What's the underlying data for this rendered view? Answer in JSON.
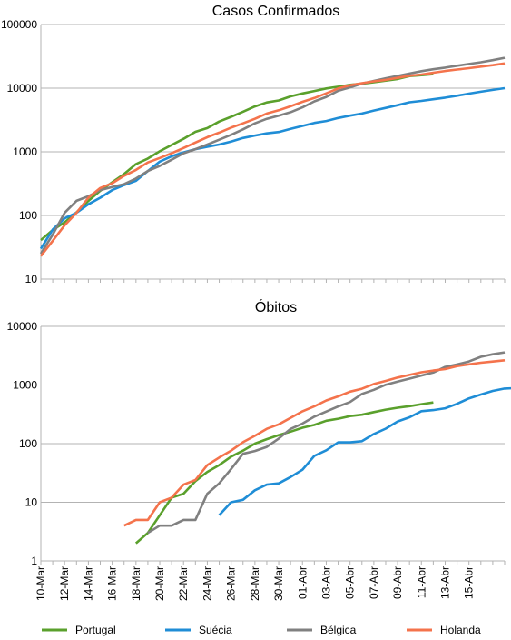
{
  "chart_data": [
    {
      "type": "line",
      "title": "Casos Confirmados",
      "yscale": "log",
      "ylim": [
        10,
        100000
      ],
      "y_ticks": [
        "10",
        "100",
        "1000",
        "10000",
        "100000"
      ],
      "x_range": [
        "10-Mar",
        "18-Abr"
      ],
      "x_ticks": [],
      "grid": true,
      "series": [
        {
          "name": "Portugal",
          "color": "#5aa02c",
          "points": [
            [
              0,
              41
            ],
            [
              1,
              59
            ],
            [
              2,
              78
            ],
            [
              3,
              112
            ],
            [
              4,
              169
            ],
            [
              5,
              245
            ],
            [
              6,
              331
            ],
            [
              7,
              448
            ],
            [
              8,
              642
            ],
            [
              9,
              785
            ],
            [
              10,
              1020
            ],
            [
              11,
              1280
            ],
            [
              12,
              1600
            ],
            [
              13,
              2060
            ],
            [
              14,
              2362
            ],
            [
              15,
              2995
            ],
            [
              16,
              3544
            ],
            [
              17,
              4268
            ],
            [
              18,
              5170
            ],
            [
              19,
              5962
            ],
            [
              20,
              6408
            ],
            [
              21,
              7443
            ],
            [
              22,
              8251
            ],
            [
              23,
              9034
            ],
            [
              24,
              9886
            ],
            [
              25,
              10524
            ],
            [
              26,
              11278
            ],
            [
              27,
              11730
            ],
            [
              28,
              12442
            ],
            [
              29,
              13141
            ],
            [
              30,
              13956
            ],
            [
              31,
              15472
            ],
            [
              32,
              15987
            ],
            [
              33,
              16585
            ]
          ]
        },
        {
          "name": "Suécia",
          "color": "#1f8dd6",
          "points": [
            [
              0,
              30
            ],
            [
              1,
              60
            ],
            [
              2,
              90
            ],
            [
              3,
              110
            ],
            [
              4,
              150
            ],
            [
              5,
              190
            ],
            [
              6,
              250
            ],
            [
              7,
              300
            ],
            [
              8,
              350
            ],
            [
              9,
              500
            ],
            [
              10,
              700
            ],
            [
              11,
              850
            ],
            [
              12,
              980
            ],
            [
              13,
              1100
            ],
            [
              14,
              1200
            ],
            [
              15,
              1300
            ],
            [
              16,
              1450
            ],
            [
              17,
              1650
            ],
            [
              18,
              1800
            ],
            [
              19,
              1950
            ],
            [
              20,
              2050
            ],
            [
              21,
              2300
            ],
            [
              22,
              2550
            ],
            [
              23,
              2850
            ],
            [
              24,
              3050
            ],
            [
              25,
              3400
            ],
            [
              26,
              3700
            ],
            [
              27,
              4000
            ],
            [
              28,
              4450
            ],
            [
              29,
              4900
            ],
            [
              30,
              5400
            ],
            [
              31,
              6000
            ],
            [
              32,
              6300
            ],
            [
              33,
              6700
            ],
            [
              34,
              7100
            ],
            [
              35,
              7600
            ],
            [
              36,
              8200
            ],
            [
              37,
              8800
            ],
            [
              38,
              9400
            ],
            [
              39,
              10000
            ]
          ]
        },
        {
          "name": "Bélgica",
          "color": "#808080",
          "points": [
            [
              0,
              25
            ],
            [
              1,
              50
            ],
            [
              2,
              110
            ],
            [
              3,
              170
            ],
            [
              4,
              200
            ],
            [
              5,
              250
            ],
            [
              6,
              280
            ],
            [
              7,
              310
            ],
            [
              8,
              380
            ],
            [
              9,
              500
            ],
            [
              10,
              600
            ],
            [
              11,
              750
            ],
            [
              12,
              950
            ],
            [
              13,
              1100
            ],
            [
              14,
              1300
            ],
            [
              15,
              1550
            ],
            [
              16,
              1850
            ],
            [
              17,
              2250
            ],
            [
              18,
              2800
            ],
            [
              19,
              3300
            ],
            [
              20,
              3700
            ],
            [
              21,
              4200
            ],
            [
              22,
              5000
            ],
            [
              23,
              6200
            ],
            [
              24,
              7300
            ],
            [
              25,
              9100
            ],
            [
              26,
              10300
            ],
            [
              27,
              11800
            ],
            [
              28,
              13000
            ],
            [
              29,
              14300
            ],
            [
              30,
              15600
            ],
            [
              31,
              17000
            ],
            [
              32,
              18500
            ],
            [
              33,
              19800
            ],
            [
              34,
              21000
            ],
            [
              35,
              22500
            ],
            [
              36,
              24000
            ],
            [
              37,
              25500
            ],
            [
              38,
              27500
            ],
            [
              39,
              30000
            ]
          ]
        },
        {
          "name": "Holanda",
          "color": "#f4734c",
          "points": [
            [
              0,
              23
            ],
            [
              1,
              40
            ],
            [
              2,
              70
            ],
            [
              3,
              110
            ],
            [
              4,
              190
            ],
            [
              5,
              270
            ],
            [
              6,
              320
            ],
            [
              7,
              420
            ],
            [
              8,
              520
            ],
            [
              9,
              680
            ],
            [
              10,
              800
            ],
            [
              11,
              950
            ],
            [
              12,
              1150
            ],
            [
              13,
              1400
            ],
            [
              14,
              1700
            ],
            [
              15,
              2000
            ],
            [
              16,
              2400
            ],
            [
              17,
              2800
            ],
            [
              18,
              3300
            ],
            [
              19,
              4000
            ],
            [
              20,
              4500
            ],
            [
              21,
              5200
            ],
            [
              22,
              6100
            ],
            [
              23,
              7000
            ],
            [
              24,
              8300
            ],
            [
              25,
              9900
            ],
            [
              26,
              11100
            ],
            [
              27,
              12000
            ],
            [
              28,
              12800
            ],
            [
              29,
              13500
            ],
            [
              30,
              14500
            ],
            [
              31,
              15700
            ],
            [
              32,
              16400
            ],
            [
              33,
              17500
            ],
            [
              34,
              18600
            ],
            [
              35,
              19600
            ],
            [
              36,
              20600
            ],
            [
              37,
              21800
            ],
            [
              38,
              23000
            ],
            [
              39,
              24500
            ]
          ]
        }
      ]
    },
    {
      "type": "line",
      "title": "Óbitos",
      "yscale": "log",
      "ylim": [
        1,
        10000
      ],
      "y_ticks": [
        "1",
        "10",
        "100",
        "1000",
        "10000"
      ],
      "x_range": [
        "10-Mar",
        "18-Abr"
      ],
      "x_ticks": [
        "10-Mar",
        "12-Mar",
        "14-Mar",
        "16-Mar",
        "18-Mar",
        "20-Mar",
        "22-Mar",
        "24-Mar",
        "26-Mar",
        "28-Mar",
        "30-Mar",
        "01-Abr",
        "03-Abr",
        "05-Abr",
        "07-Abr",
        "09-Abr",
        "11-Abr",
        "13-Abr",
        "15-Abr"
      ],
      "grid": true,
      "series": [
        {
          "name": "Portugal",
          "color": "#5aa02c",
          "points": [
            [
              8,
              2
            ],
            [
              9,
              3
            ],
            [
              10,
              6
            ],
            [
              11,
              12
            ],
            [
              12,
              14
            ],
            [
              13,
              23
            ],
            [
              14,
              33
            ],
            [
              15,
              43
            ],
            [
              16,
              60
            ],
            [
              17,
              76
            ],
            [
              18,
              100
            ],
            [
              19,
              119
            ],
            [
              20,
              140
            ],
            [
              21,
              160
            ],
            [
              22,
              187
            ],
            [
              23,
              209
            ],
            [
              24,
              246
            ],
            [
              25,
              266
            ],
            [
              26,
              295
            ],
            [
              27,
              311
            ],
            [
              28,
              345
            ],
            [
              29,
              380
            ],
            [
              30,
              409
            ],
            [
              31,
              435
            ],
            [
              32,
              470
            ],
            [
              33,
              504
            ]
          ]
        },
        {
          "name": "Suécia",
          "color": "#1f8dd6",
          "points": [
            [
              15,
              6
            ],
            [
              16,
              10
            ],
            [
              17,
              11
            ],
            [
              18,
              16
            ],
            [
              19,
              20
            ],
            [
              20,
              21
            ],
            [
              21,
              27
            ],
            [
              22,
              36
            ],
            [
              23,
              62
            ],
            [
              24,
              77
            ],
            [
              25,
              105
            ],
            [
              26,
              105
            ],
            [
              27,
              110
            ],
            [
              28,
              146
            ],
            [
              29,
              180
            ],
            [
              30,
              239
            ],
            [
              31,
              282
            ],
            [
              32,
              358
            ],
            [
              33,
              373
            ],
            [
              34,
              401
            ],
            [
              35,
              477
            ],
            [
              36,
              591
            ],
            [
              37,
              687
            ],
            [
              38,
              793
            ],
            [
              39,
              870
            ],
            [
              40,
              887
            ]
          ]
        },
        {
          "name": "Bélgica",
          "color": "#808080",
          "points": [
            [
              9,
              3
            ],
            [
              10,
              4
            ],
            [
              11,
              4
            ],
            [
              12,
              5
            ],
            [
              13,
              5
            ],
            [
              14,
              14
            ],
            [
              15,
              21
            ],
            [
              16,
              37
            ],
            [
              17,
              67
            ],
            [
              18,
              75
            ],
            [
              19,
              88
            ],
            [
              20,
              122
            ],
            [
              21,
              178
            ],
            [
              22,
              220
            ],
            [
              23,
              289
            ],
            [
              24,
              353
            ],
            [
              25,
              431
            ],
            [
              26,
              513
            ],
            [
              27,
              705
            ],
            [
              28,
              828
            ],
            [
              29,
              1011
            ],
            [
              30,
              1143
            ],
            [
              31,
              1283
            ],
            [
              32,
              1447
            ],
            [
              33,
              1632
            ],
            [
              34,
              2035
            ],
            [
              35,
              2240
            ],
            [
              36,
              2523
            ],
            [
              37,
              3019
            ],
            [
              38,
              3346
            ],
            [
              39,
              3600
            ]
          ]
        },
        {
          "name": "Holanda",
          "color": "#f4734c",
          "points": [
            [
              7,
              4
            ],
            [
              8,
              5
            ],
            [
              9,
              5
            ],
            [
              10,
              10
            ],
            [
              11,
              12
            ],
            [
              12,
              20
            ],
            [
              13,
              24
            ],
            [
              14,
              43
            ],
            [
              15,
              58
            ],
            [
              16,
              76
            ],
            [
              17,
              106
            ],
            [
              18,
              136
            ],
            [
              19,
              179
            ],
            [
              20,
              213
            ],
            [
              21,
              276
            ],
            [
              22,
              356
            ],
            [
              23,
              434
            ],
            [
              24,
              546
            ],
            [
              25,
              639
            ],
            [
              26,
              771
            ],
            [
              27,
              864
            ],
            [
              28,
              1039
            ],
            [
              29,
              1173
            ],
            [
              30,
              1339
            ],
            [
              31,
              1487
            ],
            [
              32,
              1651
            ],
            [
              33,
              1766
            ],
            [
              34,
              1867
            ],
            [
              35,
              2101
            ],
            [
              36,
              2248
            ],
            [
              37,
              2396
            ],
            [
              38,
              2511
            ],
            [
              39,
              2643
            ]
          ]
        }
      ]
    }
  ],
  "legend": [
    {
      "label": "Portugal",
      "color": "#5aa02c"
    },
    {
      "label": "Suécia",
      "color": "#1f8dd6"
    },
    {
      "label": "Bélgica",
      "color": "#808080"
    },
    {
      "label": "Holanda",
      "color": "#f4734c"
    }
  ]
}
